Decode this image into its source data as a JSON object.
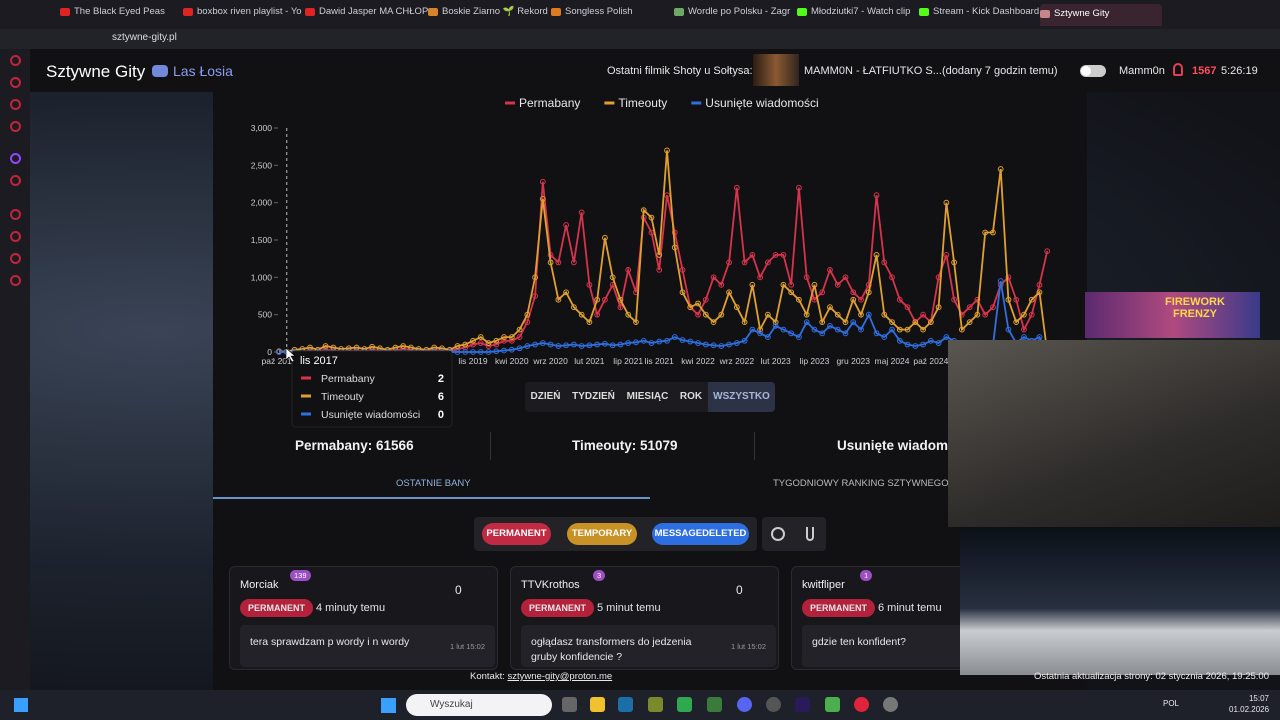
{
  "browser": {
    "tabs": [
      "The Black Eyed Peas",
      "boxbox riven playlist - Yo",
      "Dawid Jasper MA CHŁOP",
      "Boskie Ziarno 🌱 Rekord",
      "Songless Polish",
      "Wordle po Polsku - Zagr",
      "Młodziutki7 - Watch clip",
      "Stream - Kick Dashboard",
      "Sztywne Gity"
    ],
    "url": "sztywne-gity.pl"
  },
  "header": {
    "title": "Sztywne Gity",
    "discord": "Las Łosia",
    "latest_label": "Ostatni filmik Shoty u Sołtysa:",
    "latest_video": "MAMM0N - ŁATFIUTKO S...",
    "latest_age": "(dodany 7 godzin temu)",
    "user": "Mamm0n",
    "points": "1567",
    "clock": "5:26:19"
  },
  "chart_data": {
    "type": "line",
    "categories": [
      "paź 2017",
      null,
      null,
      null,
      null,
      null,
      null,
      null,
      null,
      null,
      null,
      null,
      null,
      null,
      null,
      null,
      null,
      null,
      null,
      null,
      null,
      null,
      null,
      null,
      null,
      "lis 2019",
      null,
      null,
      null,
      null,
      "kwi 2020",
      null,
      null,
      null,
      null,
      "wrz 2020",
      null,
      null,
      null,
      null,
      "lut 2021",
      null,
      null,
      null,
      null,
      "lip 2021",
      null,
      null,
      null,
      "lis 2021",
      null,
      null,
      null,
      null,
      "kwi 2022",
      null,
      null,
      null,
      null,
      "wrz 2022",
      null,
      null,
      null,
      null,
      "lut 2023",
      null,
      null,
      null,
      null,
      "lip 2023",
      null,
      null,
      null,
      null,
      "gru 2023",
      null,
      null,
      null,
      null,
      "maj 2024",
      null,
      null,
      null,
      null,
      "paź 2024",
      null,
      null,
      null,
      null,
      null,
      null,
      null,
      null,
      null,
      null,
      null,
      null,
      null,
      null,
      null
    ],
    "series": [
      {
        "name": "Permabany",
        "color": "#d7334d",
        "values": [
          0,
          2,
          5,
          10,
          20,
          10,
          30,
          20,
          10,
          15,
          20,
          10,
          30,
          20,
          10,
          20,
          40,
          30,
          20,
          10,
          30,
          20,
          10,
          40,
          60,
          100,
          120,
          80,
          100,
          150,
          150,
          200,
          400,
          750,
          2280,
          1300,
          1200,
          1700,
          1200,
          1870,
          900,
          500,
          700,
          900,
          600,
          1100,
          800,
          1800,
          1600,
          1100,
          2100,
          1600,
          1100,
          600,
          500,
          700,
          1000,
          900,
          1200,
          2200,
          1200,
          1300,
          1000,
          1200,
          1300,
          1300,
          900,
          2200,
          1000,
          700,
          800,
          1100,
          900,
          1000,
          800,
          700,
          900,
          2100,
          1200,
          1000,
          700,
          600,
          400,
          500,
          400,
          1000,
          1300,
          700,
          500,
          600,
          700,
          500,
          600,
          900,
          1000,
          700,
          300,
          500,
          900,
          1350
        ]
      },
      {
        "name": "Timeouty",
        "color": "#e0a030",
        "values": [
          10,
          6,
          30,
          40,
          60,
          30,
          80,
          60,
          40,
          50,
          60,
          40,
          70,
          50,
          30,
          60,
          80,
          60,
          40,
          30,
          60,
          50,
          30,
          80,
          100,
          150,
          200,
          120,
          150,
          200,
          200,
          300,
          500,
          1000,
          2050,
          1200,
          700,
          800,
          600,
          500,
          400,
          700,
          1530,
          1000,
          700,
          500,
          400,
          1900,
          1800,
          1300,
          2700,
          1400,
          800,
          600,
          650,
          500,
          400,
          500,
          800,
          600,
          400,
          900,
          300,
          500,
          400,
          900,
          800,
          700,
          500,
          900,
          400,
          600,
          500,
          400,
          700,
          500,
          800,
          1300,
          500,
          400,
          300,
          300,
          400,
          300,
          400,
          600,
          2000,
          1200,
          300,
          400,
          500,
          1600,
          1600,
          2450,
          700,
          400,
          500,
          700,
          800,
          0
        ]
      },
      {
        "name": "Usunięte wiadomości",
        "color": "#2f6fe0",
        "values": [
          0,
          0,
          0,
          0,
          0,
          0,
          0,
          0,
          0,
          0,
          0,
          0,
          0,
          0,
          0,
          0,
          0,
          0,
          0,
          0,
          0,
          0,
          0,
          0,
          0,
          0,
          0,
          0,
          10,
          20,
          30,
          50,
          80,
          100,
          120,
          100,
          80,
          90,
          100,
          80,
          90,
          100,
          110,
          90,
          100,
          120,
          130,
          150,
          120,
          140,
          150,
          200,
          160,
          140,
          120,
          100,
          90,
          80,
          100,
          120,
          150,
          300,
          250,
          200,
          350,
          300,
          250,
          200,
          400,
          300,
          250,
          350,
          300,
          250,
          400,
          300,
          500,
          250,
          200,
          300,
          150,
          100,
          80,
          100,
          150,
          120,
          200,
          150,
          100,
          80,
          60,
          70,
          80,
          950,
          300,
          120,
          200,
          150,
          200,
          0
        ]
      }
    ],
    "ylim": [
      0,
      3000
    ],
    "yticks": [
      0,
      500,
      {
        "value": 1000,
        "label": "1,000"
      },
      {
        "value": 1500,
        "label": "1,500"
      },
      {
        "value": 2000,
        "label": "2,000"
      },
      {
        "value": 2500,
        "label": "2,500"
      },
      {
        "value": 3000,
        "label": "3,000"
      }
    ],
    "legend": "top",
    "tooltip": {
      "title": "lis 2017",
      "index": 1
    }
  },
  "ranges": [
    "DZIEŃ",
    "TYDZIEŃ",
    "MIESIĄC",
    "ROK",
    "WSZYSTKO"
  ],
  "stats": [
    "Permabany: 61566",
    "Timeouty: 51079",
    "Usunięte wiadomo"
  ],
  "tabs": [
    "OSTATNIE BANY",
    "TYGODNIOWY RANKING SZTYWNEGO G"
  ],
  "filters": [
    "PERMANENT",
    "TEMPORARY",
    "MESSAGEDELETED"
  ],
  "cards": [
    {
      "user": "Morciak",
      "badge": "139",
      "count": "0",
      "type": "PERMANENT",
      "age": "4 minuty temu",
      "message": "tera sprawdzam p wordy i n wordy",
      "date": "1 lut 15:02"
    },
    {
      "user": "TTVKrothos",
      "badge": "3",
      "count": "0",
      "type": "PERMANENT",
      "age": "5 minut temu",
      "message": "ogłądasz transformers do jedzenia gruby konfidencie ?",
      "date": "1 lut 15:02"
    },
    {
      "user": "kwitfliper",
      "badge": "1",
      "type": "PERMANENT",
      "age": "6 minut temu",
      "message": "gdzie ten konfident?"
    }
  ],
  "footer": {
    "contact_label": "Kontakt:",
    "contact_email": "sztywne-gity@proton.me",
    "updated": "Ostatnia aktualizacja strony: 02 stycznia 2026, 19:25:00"
  },
  "overlay": {
    "banner": "FIREWORK FRENZY"
  },
  "taskbar": {
    "search": "Wyszukaj",
    "lang": "POL",
    "time": "15:07",
    "date": "01.02.2026"
  }
}
